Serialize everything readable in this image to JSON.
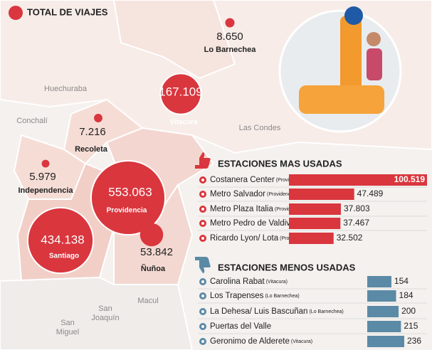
{
  "map": {
    "title": "TOTAL DE VIAJES",
    "bubbles": [
      {
        "name": "Lo Barnechea",
        "value": 8650,
        "label": "8.650"
      },
      {
        "name": "Vitacura",
        "value": 167109,
        "label": "167.109"
      },
      {
        "name": "Recoleta",
        "value": 7216,
        "label": "7.216"
      },
      {
        "name": "Independencia",
        "value": 5979,
        "label": "5.979"
      },
      {
        "name": "Providencia",
        "value": 553063,
        "label": "553.063"
      },
      {
        "name": "Santiago",
        "value": 434138,
        "label": "434.138"
      },
      {
        "name": "Ñuñoa",
        "value": 53842,
        "label": "53.842"
      }
    ],
    "places": [
      [
        "Huechuraba"
      ],
      [
        "Conchalí"
      ],
      [
        "Las Condes"
      ],
      [
        "Macul"
      ],
      [
        "San",
        "Joaquín"
      ],
      [
        "San",
        "Miguel"
      ]
    ]
  },
  "chart_data": [
    {
      "type": "bar",
      "title": "ESTACIONES MAS USADAS",
      "color": "#d9363e",
      "categories": [
        "Costanera Center",
        "Metro Salvador",
        "Metro Plaza Italia",
        "Metro Pedro de Valdivia",
        "Ricardo Lyon/ Lota"
      ],
      "comunas": [
        "(Providencia)",
        "(Providencia)",
        "(Providencia)",
        "(Providencia)",
        "(Provdiencia)"
      ],
      "values": [
        100519,
        47489,
        37803,
        37467,
        32502
      ],
      "value_labels": [
        "100.519",
        "47.489",
        "37.803",
        "37.467",
        "32.502"
      ]
    },
    {
      "type": "bar",
      "title": "ESTACIONES MENOS USADAS",
      "color": "#5b8aa6",
      "categories": [
        "Carolina Rabat",
        "Los Trapenses",
        "La Dehesa/ Luis Bascuñan",
        "Puertas del Valle",
        "Geronimo de Alderete"
      ],
      "comunas": [
        "(Vitacura)",
        "(Lo Barnechea)",
        "(Lo Barnechea)",
        null,
        "(Vitacura)"
      ],
      "values": [
        154,
        184,
        200,
        215,
        236
      ]
    }
  ]
}
